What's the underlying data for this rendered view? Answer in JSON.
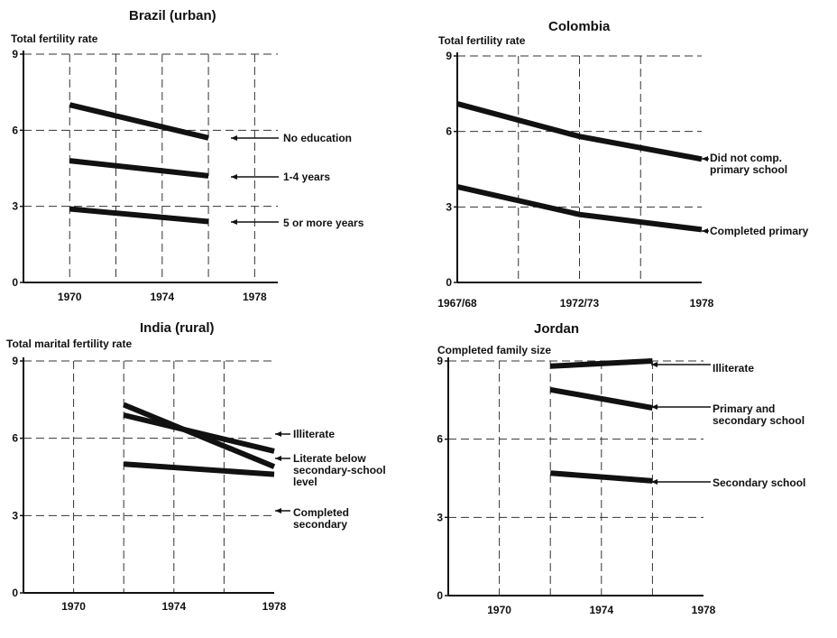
{
  "chart_data": [
    {
      "type": "line",
      "title": "Brazil (urban)",
      "ylabel": "Total fertility rate",
      "xlabel": "",
      "ylim": [
        0,
        9
      ],
      "y_ticks": [
        "0",
        "3",
        "6",
        "9"
      ],
      "x_ticks": [
        {
          "value": 1970,
          "label": "1970"
        },
        {
          "value": 1974,
          "label": "1974"
        },
        {
          "value": 1978,
          "label": "1978"
        }
      ],
      "xlim": [
        1968,
        1979
      ],
      "x_grid": [
        1970,
        1972,
        1974,
        1976,
        1978
      ],
      "series": [
        {
          "name": "No education",
          "x": [
            1970,
            1976
          ],
          "y": [
            7.0,
            5.7
          ]
        },
        {
          "name": "1-4 years",
          "x": [
            1970,
            1976
          ],
          "y": [
            4.8,
            4.2
          ]
        },
        {
          "name": "5 or more years",
          "x": [
            1970,
            1976
          ],
          "y": [
            2.9,
            2.4
          ]
        }
      ]
    },
    {
      "type": "line",
      "title": "Colombia",
      "ylabel": "Total fertility rate",
      "xlabel": "",
      "ylim": [
        0,
        9
      ],
      "y_ticks": [
        "0",
        "3",
        "6",
        "9"
      ],
      "x_ticks": [
        {
          "value": 1968,
          "label": "1967/68"
        },
        {
          "value": 1973,
          "label": "1972/73"
        },
        {
          "value": 1978,
          "label": "1978"
        }
      ],
      "xlim": [
        1968,
        1978
      ],
      "x_grid": [
        1970.5,
        1973,
        1975.5
      ],
      "series": [
        {
          "name": "Did not comp. primary school",
          "x": [
            1968,
            1973,
            1978
          ],
          "y": [
            7.1,
            5.8,
            4.9
          ]
        },
        {
          "name": "Completed primary",
          "x": [
            1968,
            1973,
            1978
          ],
          "y": [
            3.8,
            2.7,
            2.1
          ]
        }
      ]
    },
    {
      "type": "line",
      "title": "India (rural)",
      "ylabel": "Total marital fertility rate",
      "xlabel": "",
      "ylim": [
        0,
        9
      ],
      "y_ticks": [
        "0",
        "3",
        "6",
        "9"
      ],
      "x_ticks": [
        {
          "value": 1970,
          "label": "1970"
        },
        {
          "value": 1974,
          "label": "1974"
        },
        {
          "value": 1978,
          "label": "1978"
        }
      ],
      "xlim": [
        1968,
        1978
      ],
      "x_grid": [
        1970,
        1972,
        1974,
        1976
      ],
      "series": [
        {
          "name": "Illiterate",
          "x": [
            1972,
            1978
          ],
          "y": [
            6.9,
            5.5
          ]
        },
        {
          "name": "Literate below secondary-school level",
          "x": [
            1972,
            1978
          ],
          "y": [
            7.3,
            4.9
          ]
        },
        {
          "name": "Completed secondary",
          "x": [
            1972,
            1978
          ],
          "y": [
            5.0,
            4.6
          ]
        }
      ]
    },
    {
      "type": "line",
      "title": "Jordan",
      "ylabel": "Completed family size",
      "xlabel": "",
      "ylim": [
        0,
        9
      ],
      "y_ticks": [
        "0",
        "3",
        "6",
        "9"
      ],
      "x_ticks": [
        {
          "value": 1970,
          "label": "1970"
        },
        {
          "value": 1974,
          "label": "1974"
        },
        {
          "value": 1978,
          "label": "1978"
        }
      ],
      "xlim": [
        1968,
        1978
      ],
      "x_grid": [
        1970,
        1972,
        1974,
        1976
      ],
      "series": [
        {
          "name": "Illiterate",
          "x": [
            1972,
            1976
          ],
          "y": [
            8.8,
            9.0
          ]
        },
        {
          "name": "Primary and secondary school",
          "x": [
            1972,
            1976
          ],
          "y": [
            7.9,
            7.2
          ]
        },
        {
          "name": "Secondary school",
          "x": [
            1972,
            1976
          ],
          "y": [
            4.7,
            4.4
          ]
        }
      ]
    }
  ],
  "labels": [
    [
      "No education"
    ],
    [
      "1-4 years"
    ],
    [
      "5 or more years"
    ],
    [
      "Did not comp.",
      "primary school"
    ],
    [
      "Completed primary"
    ],
    [
      "Illiterate"
    ],
    [
      "Literate below",
      "secondary-school",
      "level"
    ],
    [
      "Completed",
      "secondary"
    ],
    [
      "Illiterate"
    ],
    [
      "Primary and",
      "secondary school"
    ],
    [
      "Secondary school"
    ]
  ]
}
